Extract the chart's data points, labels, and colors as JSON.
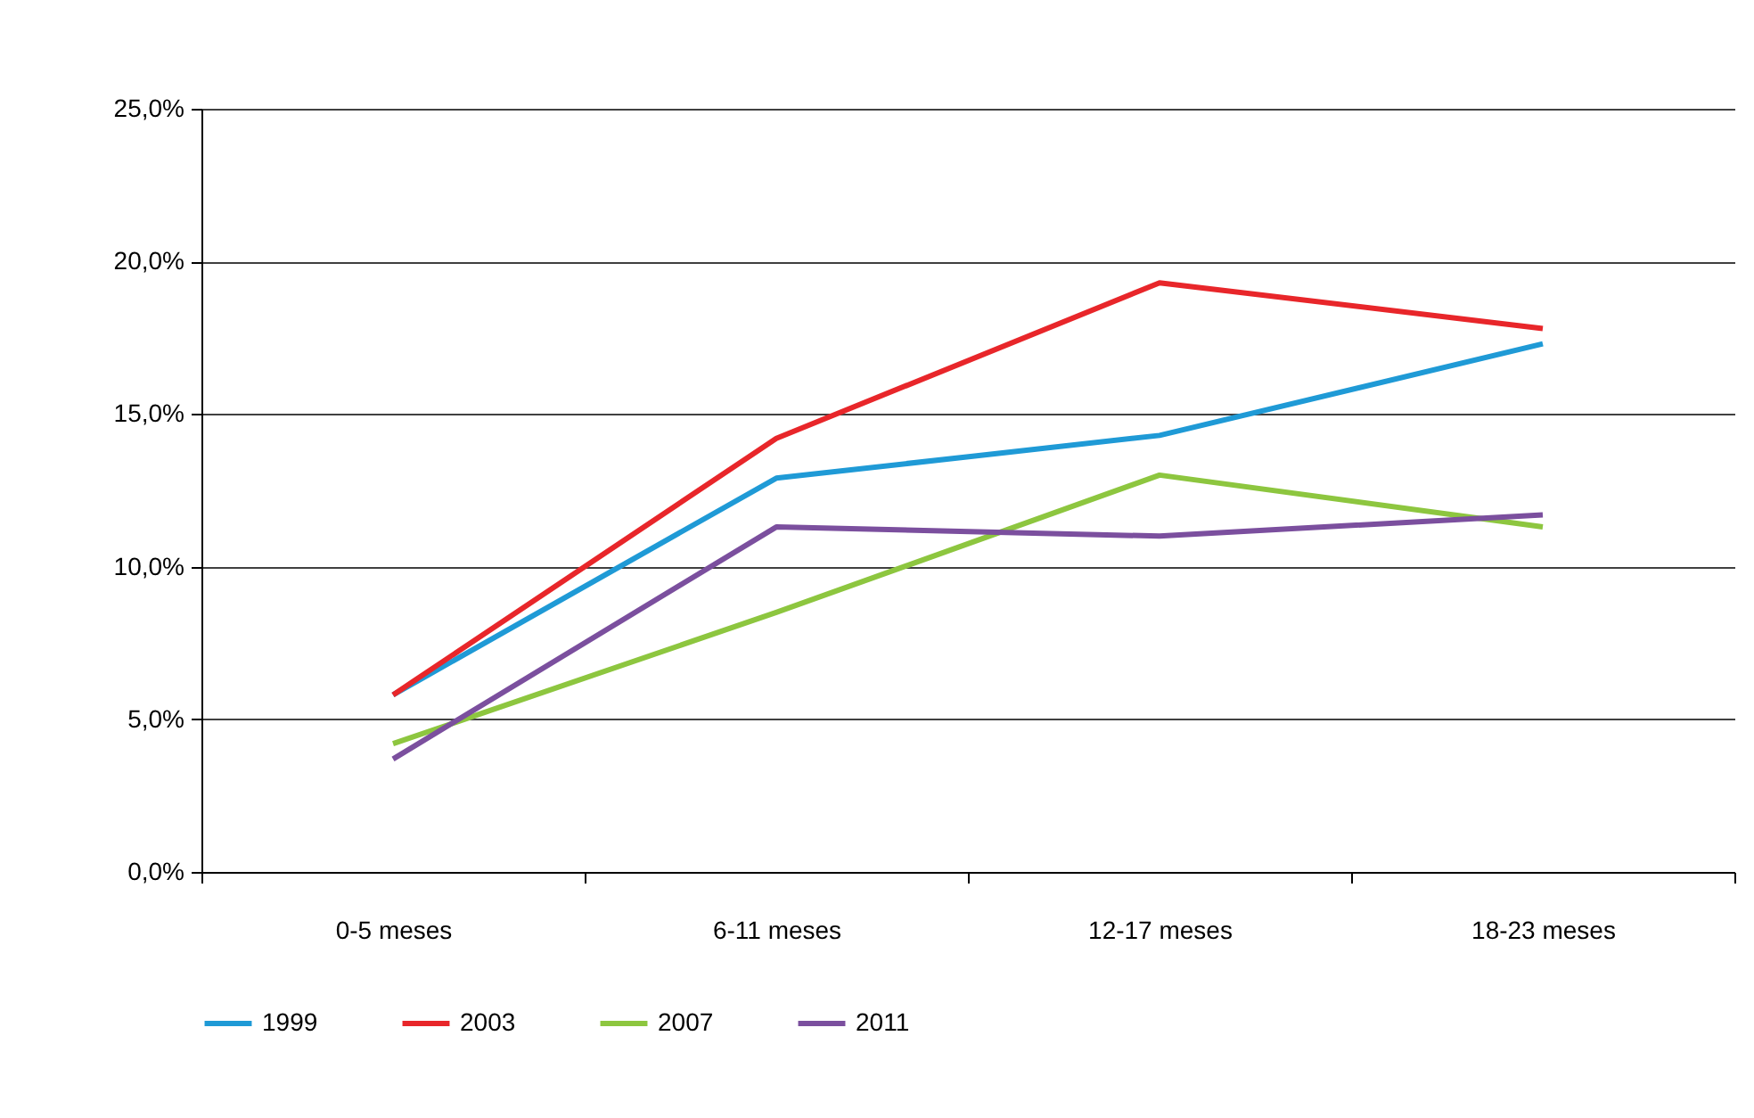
{
  "chart_data": {
    "type": "line",
    "categories": [
      "0-5 meses",
      "6-11 meses",
      "12-17 meses",
      "18-23 meses"
    ],
    "series": [
      {
        "name": "1999",
        "color": "#1f9ad6",
        "values": [
          5.8,
          12.9,
          14.3,
          17.3
        ]
      },
      {
        "name": "2003",
        "color": "#e8262a",
        "values": [
          5.8,
          14.2,
          19.3,
          17.8
        ]
      },
      {
        "name": "2007",
        "color": "#8dc63f",
        "values": [
          4.2,
          8.5,
          13.0,
          11.3
        ]
      },
      {
        "name": "2011",
        "color": "#7b4f9e",
        "values": [
          3.7,
          11.3,
          11.0,
          11.7
        ]
      }
    ],
    "ylim": [
      0,
      25
    ],
    "yticks": [
      {
        "value": 0,
        "label": "0,0%"
      },
      {
        "value": 5,
        "label": "5,0%"
      },
      {
        "value": 10,
        "label": "10,0%"
      },
      {
        "value": 15,
        "label": "15,0%"
      },
      {
        "value": 20,
        "label": "20,0%"
      },
      {
        "value": 25,
        "label": "25,0%"
      }
    ],
    "grid": "y",
    "legend": "bottom",
    "marker": "none",
    "line_style": "solid"
  }
}
